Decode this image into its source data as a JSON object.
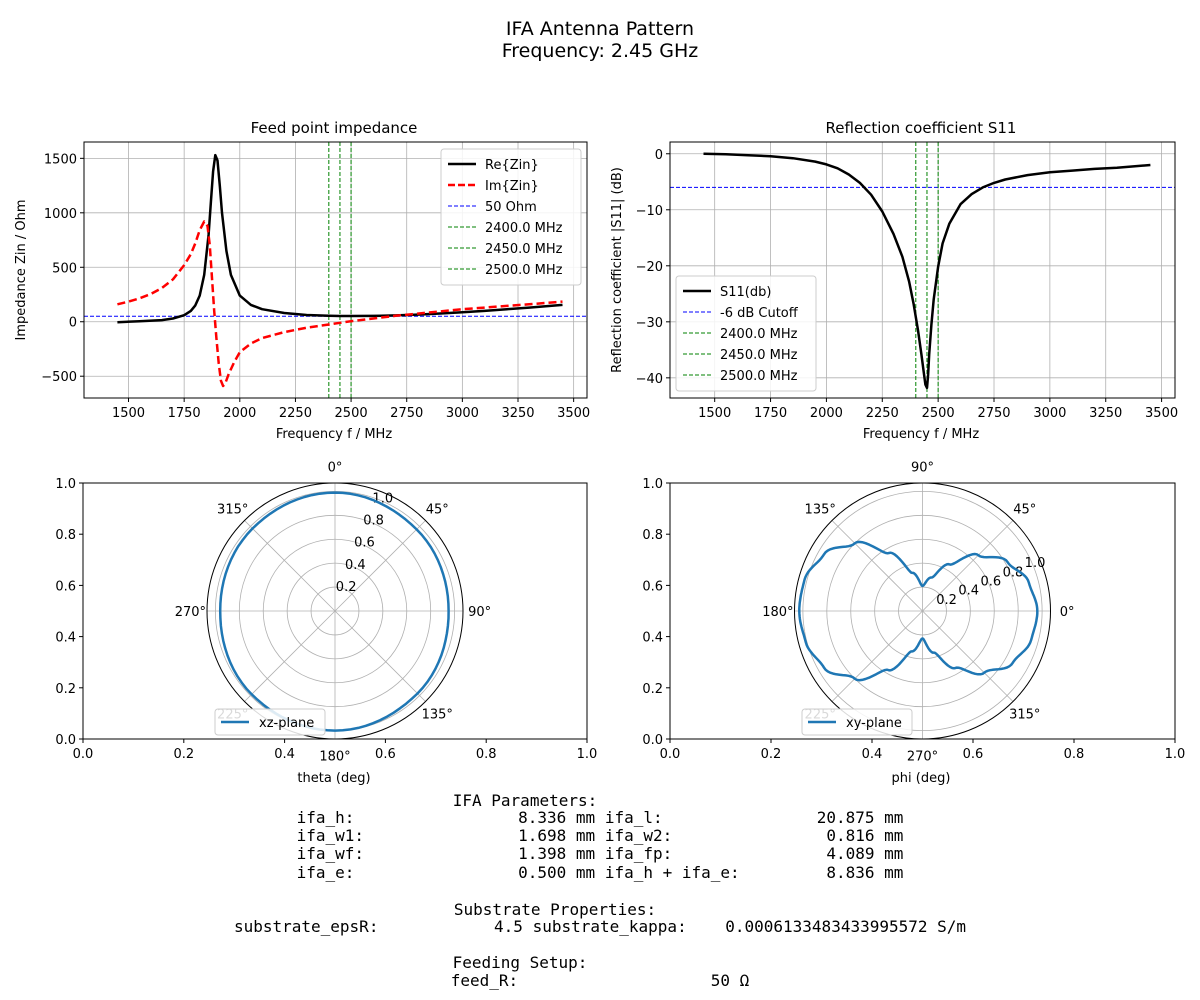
{
  "figure": {
    "title_line1": "IFA Antenna Pattern",
    "title_line2": "Frequency: 2.45 GHz"
  },
  "chart_data": [
    {
      "id": "impedance",
      "type": "line",
      "title": "Feed point impedance",
      "xlabel": "Frequency f / MHz",
      "ylabel": "Impedance Zin / Ohm",
      "xlim": [
        1300,
        3560
      ],
      "ylim": [
        -700,
        1650
      ],
      "xticks": [
        1500,
        1750,
        2000,
        2250,
        2500,
        2750,
        3000,
        3250,
        3500
      ],
      "yticks": [
        -500,
        0,
        500,
        1000,
        1500
      ],
      "ytick_labels": [
        "−500",
        "0",
        "500",
        "1000",
        "1500"
      ],
      "grid": true,
      "legend_position": "upper right",
      "series": [
        {
          "name": "Re{Zin}",
          "color": "#000000",
          "style": "solid",
          "x": [
            1450,
            1550,
            1650,
            1700,
            1750,
            1780,
            1800,
            1820,
            1840,
            1860,
            1870,
            1880,
            1890,
            1900,
            1910,
            1920,
            1940,
            1960,
            2000,
            2050,
            2100,
            2200,
            2300,
            2400,
            2450,
            2500,
            2600,
            2700,
            2800,
            2900,
            3000,
            3100,
            3200,
            3300,
            3450
          ],
          "y": [
            -4,
            4,
            15,
            30,
            60,
            100,
            150,
            240,
            430,
            800,
            1100,
            1380,
            1530,
            1480,
            1250,
            1000,
            650,
            430,
            240,
            155,
            115,
            80,
            62,
            55,
            53,
            53,
            54,
            58,
            66,
            76,
            88,
            100,
            115,
            130,
            155
          ]
        },
        {
          "name": "Im{Zin}",
          "color": "#ff0000",
          "style": "dashed",
          "x": [
            1450,
            1500,
            1550,
            1600,
            1650,
            1700,
            1750,
            1780,
            1800,
            1820,
            1840,
            1855,
            1865,
            1875,
            1885,
            1895,
            1905,
            1915,
            1925,
            1935,
            1950,
            1975,
            2000,
            2050,
            2100,
            2200,
            2300,
            2400,
            2450,
            2500,
            2600,
            2700,
            2800,
            2900,
            3000,
            3100,
            3200,
            3300,
            3450
          ],
          "y": [
            160,
            185,
            215,
            255,
            310,
            390,
            520,
            620,
            720,
            840,
            920,
            880,
            700,
            400,
            100,
            -150,
            -380,
            -540,
            -590,
            -565,
            -480,
            -370,
            -280,
            -200,
            -150,
            -95,
            -55,
            -25,
            -10,
            5,
            30,
            55,
            75,
            95,
            115,
            130,
            145,
            160,
            185
          ]
        },
        {
          "name": "50 Ohm",
          "color": "#0000ff",
          "style": "hline",
          "y": 50
        },
        {
          "name": "2400.0 MHz",
          "color": "#008000",
          "style": "vline",
          "x": 2400
        },
        {
          "name": "2450.0 MHz",
          "color": "#008000",
          "style": "vline",
          "x": 2450
        },
        {
          "name": "2500.0 MHz",
          "color": "#008000",
          "style": "vline",
          "x": 2500
        }
      ]
    },
    {
      "id": "s11",
      "type": "line",
      "title": "Reflection coefficient S11",
      "xlabel": "Frequency f / MHz",
      "ylabel": "Reflection coefficient |S11| (dB)",
      "xlim": [
        1300,
        3560
      ],
      "ylim": [
        -43.6,
        2.1
      ],
      "xticks": [
        1500,
        1750,
        2000,
        2250,
        2500,
        2750,
        3000,
        3250,
        3500
      ],
      "yticks": [
        -40,
        -30,
        -20,
        -10,
        0
      ],
      "ytick_labels": [
        "−40",
        "−30",
        "−20",
        "−10",
        "0"
      ],
      "grid": true,
      "legend_position": "lower left",
      "series": [
        {
          "name": "S11(db)",
          "color": "#000000",
          "style": "solid",
          "x": [
            1450,
            1550,
            1650,
            1750,
            1850,
            1950,
            2000,
            2050,
            2100,
            2150,
            2200,
            2250,
            2300,
            2340,
            2370,
            2390,
            2410,
            2425,
            2435,
            2443,
            2450,
            2455,
            2460,
            2470,
            2480,
            2500,
            2520,
            2550,
            2600,
            2650,
            2700,
            2750,
            2800,
            2900,
            3000,
            3100,
            3200,
            3300,
            3450
          ],
          "y": [
            0,
            -0.1,
            -0.25,
            -0.45,
            -0.8,
            -1.4,
            -1.9,
            -2.6,
            -3.7,
            -5.2,
            -7.3,
            -10.3,
            -14.3,
            -18.4,
            -22.8,
            -26.8,
            -31.5,
            -35.8,
            -38.8,
            -41.2,
            -41.8,
            -39.5,
            -35.8,
            -30.5,
            -26.0,
            -20.2,
            -16.0,
            -12.5,
            -9.0,
            -7.2,
            -6.0,
            -5.2,
            -4.6,
            -3.8,
            -3.3,
            -3.0,
            -2.7,
            -2.5,
            -2.0
          ]
        },
        {
          "name": "-6 dB Cutoff",
          "color": "#0000ff",
          "style": "hline",
          "y": -6
        },
        {
          "name": "2400.0 MHz",
          "color": "#008000",
          "style": "vline",
          "x": 2400
        },
        {
          "name": "2450.0 MHz",
          "color": "#008000",
          "style": "vline",
          "x": 2450
        },
        {
          "name": "2500.0 MHz",
          "color": "#008000",
          "style": "vline",
          "x": 2500
        }
      ]
    },
    {
      "id": "polar_xz",
      "type": "polar",
      "xlabel": "theta (deg)",
      "theta_zero": "N",
      "theta_direction": "clockwise",
      "angle_labels": [
        "0°",
        "45°",
        "90°",
        "135°",
        "180°",
        "225°",
        "270°",
        "315°"
      ],
      "rticks": [
        "0.2",
        "0.4",
        "0.6",
        "0.8",
        "1.0"
      ],
      "rtick_label_angle_deg": 22.5,
      "rlim": [
        0,
        1.07
      ],
      "series": [
        {
          "name": "xz-plane",
          "color": "#1f77b4",
          "theta_deg": [
            0,
            45,
            90,
            135,
            180,
            225,
            270,
            315,
            360
          ],
          "r": [
            0.99,
            0.965,
            0.95,
            0.975,
            1.0,
            0.985,
            0.96,
            0.975,
            0.99
          ]
        }
      ],
      "frame_axis": {
        "xticks": [
          "0.0",
          "0.2",
          "0.4",
          "0.6",
          "0.8",
          "1.0"
        ],
        "yticks": [
          "0.0",
          "0.2",
          "0.4",
          "0.6",
          "0.8",
          "1.0"
        ]
      },
      "legend_position": "lower center"
    },
    {
      "id": "polar_xy",
      "type": "polar",
      "xlabel": "phi (deg)",
      "theta_zero": "E",
      "theta_direction": "counterclockwise",
      "angle_labels": [
        "0°",
        "45°",
        "90°",
        "135°",
        "180°",
        "225°",
        "270°",
        "315°"
      ],
      "rticks": [
        "0.2",
        "0.4",
        "0.6",
        "0.8",
        "1.0"
      ],
      "rtick_label_angle_deg": 22.5,
      "rlim": [
        0,
        1.07
      ],
      "series": [
        {
          "name": "xy-plane",
          "color": "#1f77b4",
          "theta_deg": [
            0,
            15,
            30,
            45,
            60,
            75,
            90,
            105,
            120,
            135,
            150,
            165,
            180,
            195,
            210,
            225,
            240,
            255,
            270,
            285,
            300,
            315,
            330,
            345,
            360
          ],
          "r": [
            0.96,
            0.92,
            0.82,
            0.66,
            0.45,
            0.29,
            0.21,
            0.33,
            0.56,
            0.8,
            0.95,
            1.02,
            1.03,
            1.01,
            0.95,
            0.8,
            0.57,
            0.35,
            0.23,
            0.36,
            0.55,
            0.73,
            0.87,
            0.94,
            0.96
          ]
        }
      ],
      "frame_axis": {
        "xticks": [
          "0.0",
          "0.2",
          "0.4",
          "0.6",
          "0.8",
          "1.0"
        ],
        "yticks": [
          "0.0",
          "0.2",
          "0.4",
          "0.6",
          "0.8",
          "1.0"
        ]
      },
      "legend_position": "lower left"
    }
  ],
  "parameters": {
    "ifa_title": "IFA Parameters:",
    "ifa_lines": [
      "ifa_h:                 8.336 mm ifa_l:                20.875 mm",
      "ifa_w1:                1.698 mm ifa_w2:                0.816 mm",
      "ifa_wf:                1.398 mm ifa_fp:                4.089 mm",
      "ifa_e:                 0.500 mm ifa_h + ifa_e:         8.836 mm"
    ],
    "substrate_title": "Substrate Properties:",
    "substrate_line": "substrate_epsR:            4.5 substrate_kappa:    0.0006133483433995572 S/m",
    "feed_title": "Feeding Setup:",
    "feed_line": "feed_R:                    50 Ω"
  }
}
